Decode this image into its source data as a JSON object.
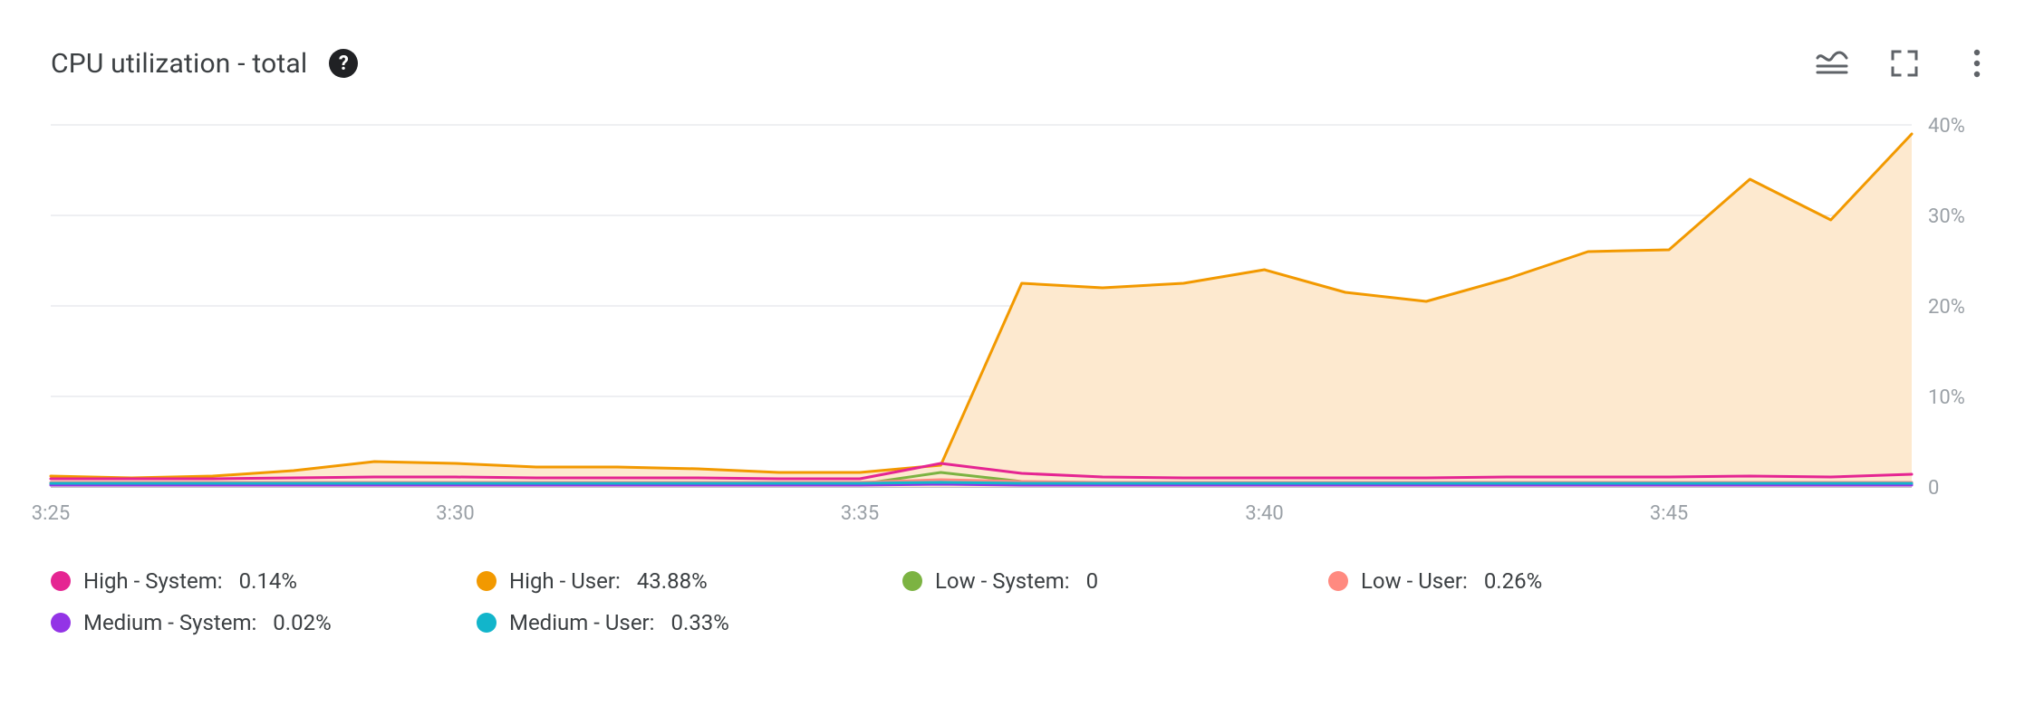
{
  "header": {
    "title": "CPU utilization - total",
    "help_icon_name": "help-icon",
    "toolbar": {
      "legend_toggle_name": "legend-toggle-icon",
      "fullscreen_name": "fullscreen-icon",
      "more_name": "more-vert-icon"
    }
  },
  "chart": {
    "type": "area",
    "background_color": "#ffffff",
    "grid_color": "#e8eaed",
    "baseline_color": "#bdc1c6",
    "axis_label_color": "#9aa0a6",
    "axis_fontsize_pt": 16,
    "xlim": [
      0,
      23
    ],
    "ylim": [
      0,
      40
    ],
    "ytick_step": 10,
    "y_ticks": [
      {
        "value": 0,
        "label": "0"
      },
      {
        "value": 10,
        "label": "10%"
      },
      {
        "value": 20,
        "label": "20%"
      },
      {
        "value": 30,
        "label": "30%"
      },
      {
        "value": 40,
        "label": "40%"
      }
    ],
    "x_ticks": [
      {
        "index": 0,
        "label": "3:25"
      },
      {
        "index": 5,
        "label": "3:30"
      },
      {
        "index": 10,
        "label": "3:35"
      },
      {
        "index": 15,
        "label": "3:40"
      },
      {
        "index": 20,
        "label": "3:45"
      }
    ],
    "series": [
      {
        "key": "high_user",
        "name": "High - User",
        "color": "#f29900",
        "fill_color": "#fde9cf",
        "fill_opacity": 1,
        "line_width": 3,
        "area": true,
        "data": [
          1.2,
          1.0,
          1.2,
          1.8,
          2.8,
          2.6,
          2.2,
          2.2,
          2.0,
          1.6,
          1.6,
          2.4,
          22.5,
          22.0,
          22.5,
          24.0,
          21.5,
          20.5,
          23.0,
          26.0,
          26.2,
          34.0,
          29.5,
          39.0
        ]
      },
      {
        "key": "high_system",
        "name": "High - System",
        "color": "#e52592",
        "line_width": 3,
        "area": false,
        "data": [
          0.9,
          0.9,
          0.9,
          1.0,
          1.1,
          1.1,
          1.0,
          1.0,
          1.0,
          0.9,
          0.9,
          2.6,
          1.5,
          1.1,
          1.0,
          1.0,
          1.0,
          1.0,
          1.1,
          1.1,
          1.1,
          1.2,
          1.1,
          1.4
        ]
      },
      {
        "key": "low_system",
        "name": "Low - System",
        "color": "#7cb342",
        "line_width": 3,
        "area": false,
        "data": [
          0.3,
          0.3,
          0.3,
          0.3,
          0.3,
          0.3,
          0.3,
          0.3,
          0.3,
          0.3,
          0.3,
          1.6,
          0.6,
          0.3,
          0.3,
          0.3,
          0.3,
          0.3,
          0.3,
          0.3,
          0.3,
          0.3,
          0.3,
          0.3
        ]
      },
      {
        "key": "low_user",
        "name": "Low - User",
        "color": "#ff8a80",
        "line_width": 3,
        "area": false,
        "data": [
          0.5,
          0.5,
          0.5,
          0.5,
          0.5,
          0.5,
          0.5,
          0.5,
          0.5,
          0.5,
          0.5,
          0.8,
          0.6,
          0.5,
          0.5,
          0.5,
          0.5,
          0.5,
          0.5,
          0.5,
          0.5,
          0.5,
          0.5,
          0.5
        ]
      },
      {
        "key": "medium_system",
        "name": "Medium - System",
        "color": "#9334e6",
        "line_width": 3,
        "area": false,
        "data": [
          0.2,
          0.2,
          0.2,
          0.2,
          0.2,
          0.2,
          0.2,
          0.2,
          0.2,
          0.2,
          0.2,
          0.3,
          0.2,
          0.2,
          0.2,
          0.2,
          0.2,
          0.2,
          0.2,
          0.2,
          0.2,
          0.2,
          0.2,
          0.2
        ]
      },
      {
        "key": "medium_user",
        "name": "Medium - User",
        "color": "#12b5cb",
        "line_width": 3,
        "area": false,
        "data": [
          0.4,
          0.4,
          0.4,
          0.4,
          0.4,
          0.4,
          0.4,
          0.4,
          0.4,
          0.4,
          0.4,
          0.5,
          0.4,
          0.4,
          0.4,
          0.4,
          0.4,
          0.4,
          0.4,
          0.4,
          0.4,
          0.4,
          0.4,
          0.4
        ]
      }
    ]
  },
  "legend": {
    "items": [
      {
        "key": "high_system",
        "color": "#e52592",
        "label": "High - System:",
        "value": "0.14%"
      },
      {
        "key": "high_user",
        "color": "#f29900",
        "label": "High - User:",
        "value": "43.88%"
      },
      {
        "key": "low_system",
        "color": "#7cb342",
        "label": "Low - System:",
        "value": "0"
      },
      {
        "key": "low_user",
        "color": "#ff8a80",
        "label": "Low - User:",
        "value": "0.26%"
      },
      {
        "key": "medium_system",
        "color": "#9334e6",
        "label": "Medium - System:",
        "value": "0.02%"
      },
      {
        "key": "medium_user",
        "color": "#12b5cb",
        "label": "Medium - User:",
        "value": "0.33%"
      }
    ]
  }
}
